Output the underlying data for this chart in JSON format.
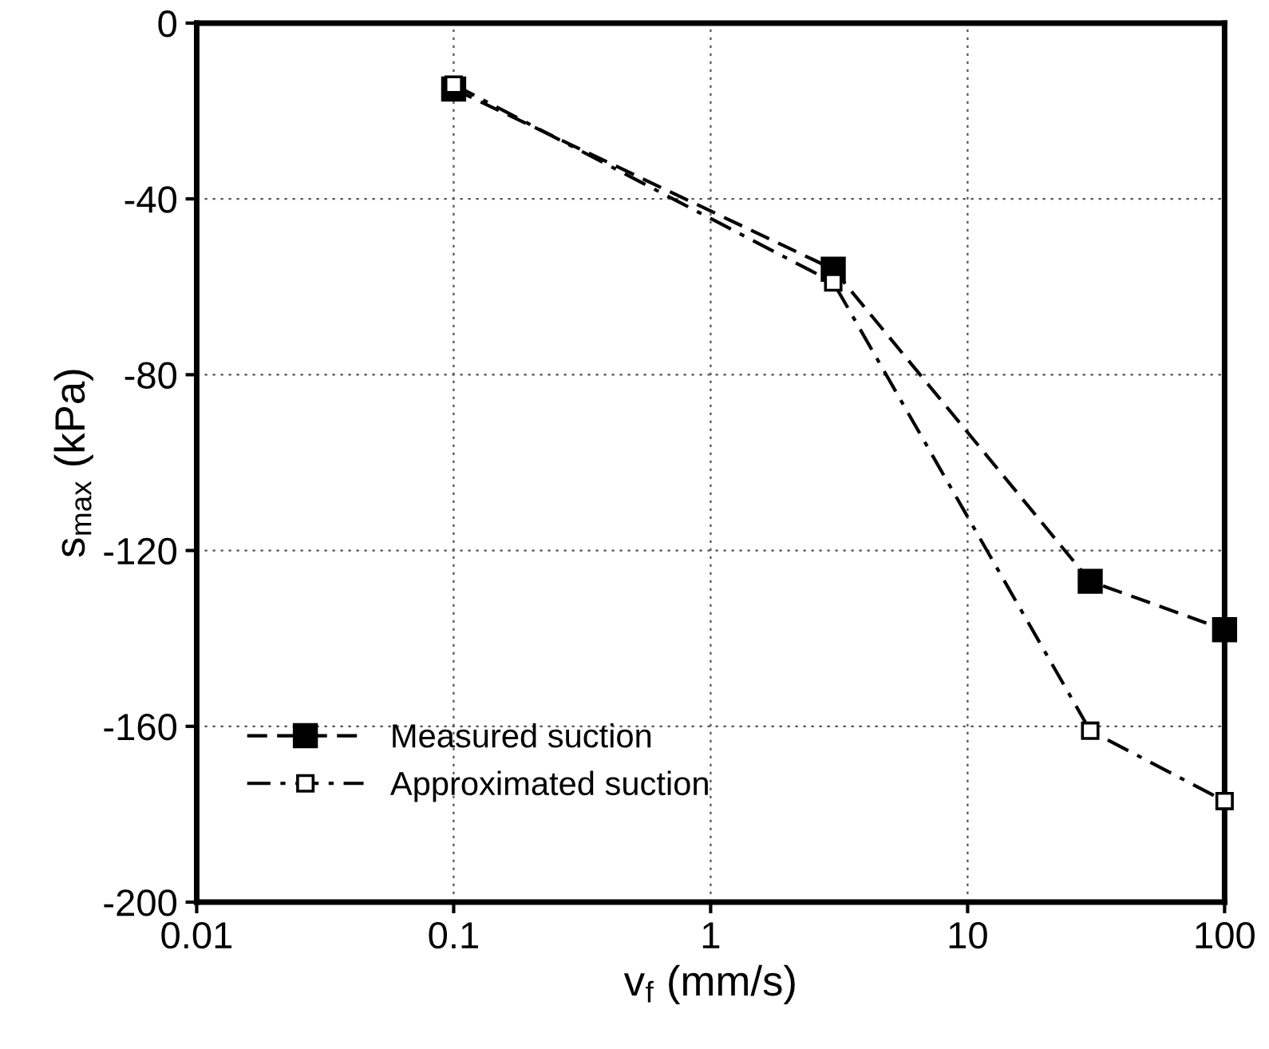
{
  "chart_data": {
    "type": "line",
    "xlabel": "v$_{f}$ (mm/s)",
    "ylabel": "s$_{max}$ (kPa)",
    "log": "x",
    "xlim": [
      0.01,
      100
    ],
    "xticks": [
      0.01,
      0.1,
      1,
      10,
      100
    ],
    "ylim": [
      -200,
      0
    ],
    "yticks": [
      -200,
      -160,
      -120,
      -80,
      -40,
      0
    ],
    "grid": true,
    "legend": "bottom left",
    "series": [
      {
        "name": "Measured suction",
        "color": "#000000",
        "line_style": "dashed",
        "marker": "square",
        "x": [
          0.1,
          3,
          30,
          100
        ],
        "values": [
          -15,
          -56,
          -127,
          -138
        ]
      },
      {
        "name": "Approximated suction",
        "color": "#000000",
        "line_style": "dashdot",
        "marker": "square open",
        "x": [
          0.1,
          3,
          30,
          100
        ],
        "values": [
          -14,
          -59,
          -161,
          -177
        ]
      }
    ]
  }
}
